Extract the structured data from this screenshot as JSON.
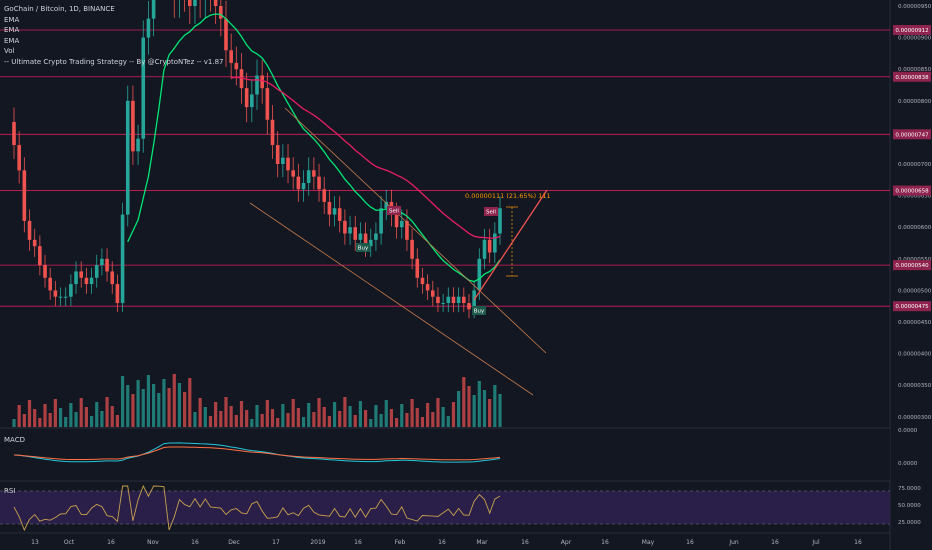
{
  "header": {
    "symbol_line": "GoChain / Bitcoin, 1D, BINANCE",
    "indicators": [
      "EMA",
      "EMA",
      "EMA",
      "Vol",
      "-- Ultimate Crypto Trading Strategy -- By @CryptoNTez -- v1.87"
    ]
  },
  "panels": {
    "macd_label": "MACD",
    "rsi_label": "RSI"
  },
  "colors": {
    "background": "#131722",
    "up": "#26a69a",
    "down": "#ef5350",
    "ema_fast": "#00e676",
    "ema_slow": "#e91e63",
    "level_line": "#e91e63",
    "trend_line": "#c57b4b",
    "rsi_fill": "#2a1f49",
    "rsi_line": "#c9a14c",
    "macd_line": "#26c6da",
    "signal_line": "#ff7043",
    "measure": "#ff9800",
    "buy_badge": "#1e5a4b",
    "sell_badge": "#8e244d"
  },
  "chart_data": {
    "type": "candlestick",
    "title": "GoChain / Bitcoin, 1D, BINANCE",
    "y_axis_ticks": [
      "0.00000950",
      "0.00000900",
      "0.00000850",
      "0.00000800",
      "0.00000750",
      "0.00000700",
      "0.00000650",
      "0.00000600",
      "0.00000550",
      "0.00000500",
      "0.00000450",
      "0.00000400",
      "0.00000350",
      "0.00000300"
    ],
    "x_axis_ticks": [
      "13",
      "Oct",
      "16",
      "Nov",
      "16",
      "Dec",
      "17",
      "2019",
      "16",
      "Feb",
      "16",
      "Mar",
      "16",
      "Apr",
      "16",
      "May",
      "16",
      "Jun",
      "16",
      "Jul",
      "16"
    ],
    "horizontal_levels": [
      {
        "price": 9.12e-06,
        "label": "0.00000912"
      },
      {
        "price": 8.38e-06,
        "label": "0.00000838"
      },
      {
        "price": 7.47e-06,
        "label": "0.00000747"
      },
      {
        "price": 6.58e-06,
        "label": "0.00000658"
      },
      {
        "price": 5.4e-06,
        "label": "0.00000540"
      },
      {
        "price": 4.75e-06,
        "label": "0.00000475"
      }
    ],
    "candle_closes_approx": [
      7.3e-06,
      6.9e-06,
      6.1e-06,
      5.8e-06,
      5.7e-06,
      5.4e-06,
      5.2e-06,
      5e-06,
      4.9e-06,
      4.9e-06,
      4.9e-06,
      5.1e-06,
      5.3e-06,
      5.2e-06,
      5.1e-06,
      5.2e-06,
      5.4e-06,
      5.5e-06,
      5.3e-06,
      5.1e-06,
      4.8e-06,
      6.2e-06,
      8e-06,
      7.2e-06,
      7.4e-06,
      9e-06,
      9.3e-06,
      1.1e-05,
      1.2e-05,
      1.3e-05,
      1.05e-05,
      9.6e-06,
      9.8e-06,
      9.7e-06,
      9.5e-06,
      9.8e-06,
      9.6e-06,
      9.9e-06,
      9.7e-06,
      9.5e-06,
      9.3e-06,
      8.8e-06,
      8.6e-06,
      8.5e-06,
      8.2e-06,
      7.9e-06,
      8.1e-06,
      8.4e-06,
      8.2e-06,
      7.7e-06,
      7.3e-06,
      7e-06,
      7.1e-06,
      6.9e-06,
      6.8e-06,
      6.6e-06,
      6.7e-06,
      6.9e-06,
      6.8e-06,
      6.6e-06,
      6.4e-06,
      6.2e-06,
      6.3e-06,
      6.1e-06,
      5.9e-06,
      6e-06,
      5.8e-06,
      5.9e-06,
      5.7e-06,
      5.8e-06,
      5.9e-06,
      6.3e-06,
      6.4e-06,
      6.2e-06,
      6e-06,
      6.1e-06,
      5.8e-06,
      5.5e-06,
      5.2e-06,
      5.1e-06,
      5e-06,
      4.9e-06,
      4.8e-06,
      4.8e-06,
      4.9e-06,
      4.8e-06,
      4.9e-06,
      4.8e-06,
      4.7e-06,
      5e-06,
      5.5e-06,
      5.8e-06,
      5.6e-06,
      5.9e-06,
      6.3e-06
    ],
    "ema_labels": [
      "EMA",
      "EMA",
      "EMA"
    ],
    "annotations": {
      "measure_label": "0.00000111 (21.65%) 111",
      "buy_labels": [
        "Buy",
        "Buy"
      ],
      "sell_labels": [
        "Sell",
        "Sell"
      ]
    },
    "macd_axis_ticks": [
      "0.0000",
      "0.0000"
    ],
    "rsi_axis_ticks": [
      "75.0000",
      "50.0000",
      "25.0000"
    ],
    "price_scale": "linear",
    "legend": "top-left"
  }
}
